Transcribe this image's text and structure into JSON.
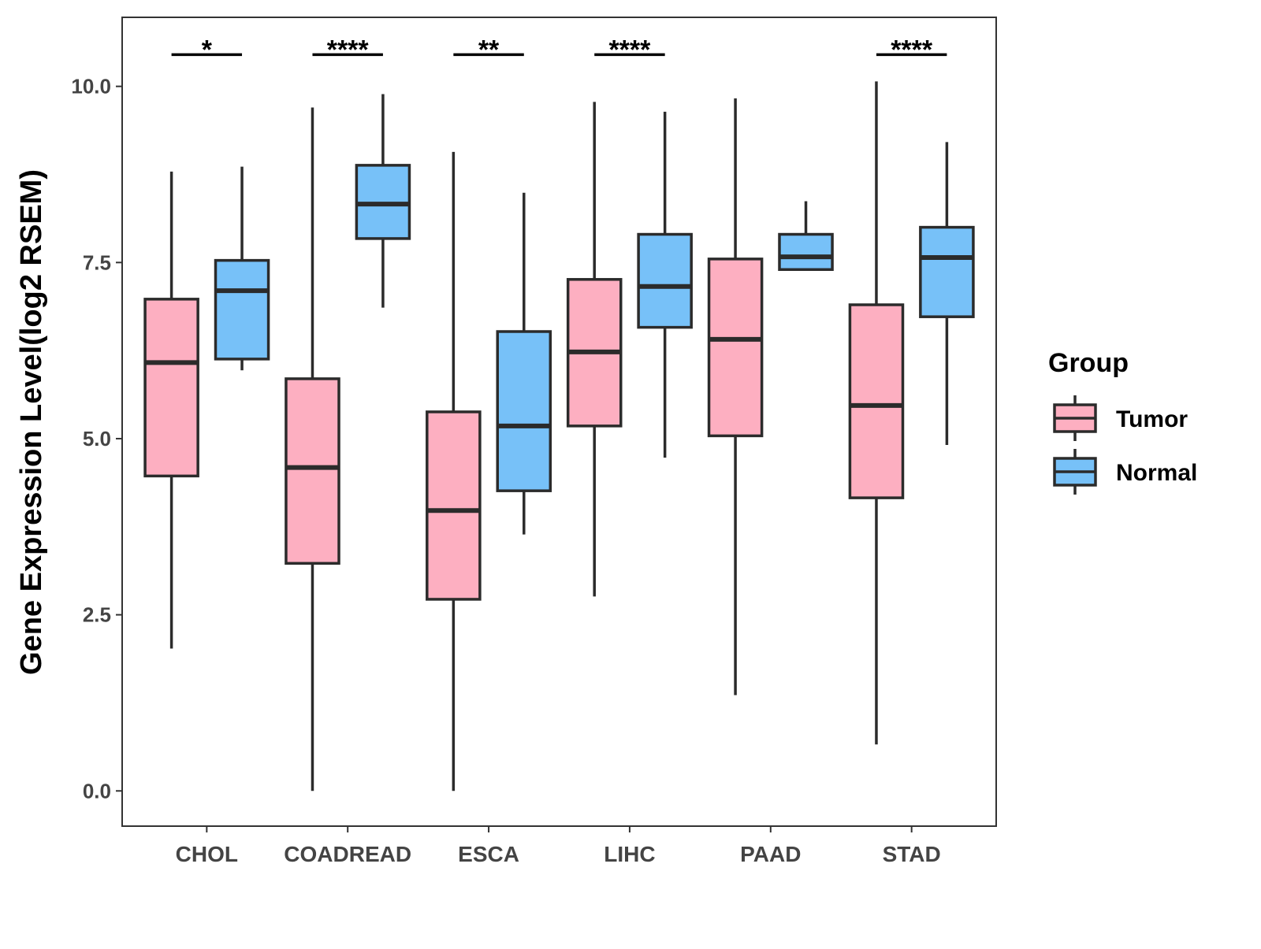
{
  "chart_data": {
    "type": "boxplot",
    "title": "",
    "xlabel": "",
    "ylabel": "Gene Expression Level(log2 RSEM)",
    "ylim": [
      -0.5,
      10.98
    ],
    "xlim": [
      0.4,
      6.6
    ],
    "yticks": [
      0.0,
      2.5,
      5.0,
      7.5,
      10.0
    ],
    "ytick_labels": [
      "0.0",
      "2.5",
      "5.0",
      "7.5",
      "10.0"
    ],
    "grid": false,
    "categories": [
      "CHOL",
      "COADREAD",
      "ESCA",
      "LIHC",
      "PAAD",
      "STAD"
    ],
    "legend": {
      "title": "Group",
      "position": "right",
      "entries": [
        "Tumor",
        "Normal"
      ]
    },
    "colors": {
      "Tumor": "#FDAFC1",
      "Normal": "#77C1F8",
      "outline": "#2b2b2b"
    },
    "series": [
      {
        "name": "Tumor",
        "boxes": [
          {
            "min": 2.02,
            "q1": 4.47,
            "median": 6.08,
            "q3": 6.98,
            "max": 8.79
          },
          {
            "min": 0.0,
            "q1": 3.23,
            "median": 4.59,
            "q3": 5.85,
            "max": 9.7
          },
          {
            "min": 0.0,
            "q1": 2.72,
            "median": 3.98,
            "q3": 5.38,
            "max": 9.07
          },
          {
            "min": 2.76,
            "q1": 5.18,
            "median": 6.23,
            "q3": 7.26,
            "max": 9.78
          },
          {
            "min": 1.36,
            "q1": 5.04,
            "median": 6.41,
            "q3": 7.55,
            "max": 9.83
          },
          {
            "min": 0.66,
            "q1": 4.16,
            "median": 5.47,
            "q3": 6.9,
            "max": 10.07
          }
        ]
      },
      {
        "name": "Normal",
        "boxes": [
          {
            "min": 5.97,
            "q1": 6.13,
            "median": 7.1,
            "q3": 7.53,
            "max": 8.86
          },
          {
            "min": 6.86,
            "q1": 7.84,
            "median": 8.33,
            "q3": 8.88,
            "max": 9.89
          },
          {
            "min": 3.64,
            "q1": 4.26,
            "median": 5.18,
            "q3": 6.52,
            "max": 8.49
          },
          {
            "min": 4.73,
            "q1": 6.58,
            "median": 7.16,
            "q3": 7.9,
            "max": 9.64
          },
          {
            "min": 7.4,
            "q1": 7.4,
            "median": 7.58,
            "q3": 7.9,
            "max": 8.37
          },
          {
            "min": 4.91,
            "q1": 6.73,
            "median": 7.57,
            "q3": 8.0,
            "max": 9.21
          }
        ]
      }
    ],
    "significance": [
      "*",
      "****",
      "**",
      "****",
      "",
      "****"
    ],
    "significance_y": 10.45
  }
}
